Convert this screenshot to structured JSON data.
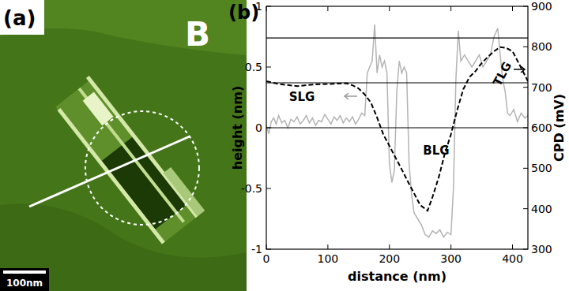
{
  "panel_a": {
    "label": "(a)",
    "region_label": "B",
    "scale_bar": "100nm"
  },
  "chart_data": {
    "type": "line",
    "panel_label": "(b)",
    "x_label": "distance (nm)",
    "y_label": "height (nm)",
    "y2_label": "CPD (mV)",
    "xlim": [
      0,
      425
    ],
    "xticks": [
      0,
      100,
      200,
      300,
      400
    ],
    "ylim": [
      -1,
      1
    ],
    "yticks": [
      -1,
      -0.5,
      0,
      0.5,
      1
    ],
    "y2lim": [
      300,
      900
    ],
    "y2ticks": [
      300,
      400,
      500,
      600,
      700,
      800,
      900
    ],
    "reference_lines": [
      0,
      0.37,
      0.74
    ],
    "annotations": [
      "SLG",
      "BLG",
      "TLG"
    ],
    "series": [
      {
        "axis": "y",
        "color": "#b4b4b4",
        "line_style": "solid",
        "x": [
          0,
          4,
          8,
          12,
          16,
          20,
          25,
          30,
          35,
          40,
          45,
          50,
          55,
          60,
          65,
          70,
          75,
          80,
          85,
          90,
          95,
          100,
          105,
          110,
          115,
          120,
          125,
          130,
          135,
          140,
          145,
          150,
          155,
          160,
          164,
          168,
          172,
          176,
          180,
          184,
          188,
          192,
          196,
          200,
          204,
          208,
          212,
          216,
          220,
          224,
          228,
          232,
          236,
          240,
          246,
          252,
          258,
          264,
          270,
          276,
          282,
          288,
          294,
          300,
          304,
          308,
          312,
          316,
          322,
          328,
          334,
          340,
          346,
          352,
          358,
          364,
          370,
          376,
          380,
          384,
          388,
          392,
          396,
          402,
          408,
          414,
          420,
          425
        ],
        "values": [
          0.02,
          -0.05,
          0.05,
          0.08,
          0.03,
          0.1,
          0.04,
          0.06,
          0.0,
          0.07,
          0.05,
          0.09,
          0.03,
          0.06,
          0.1,
          0.04,
          0.08,
          0.02,
          0.06,
          0.05,
          0.11,
          0.07,
          0.03,
          0.09,
          0.06,
          0.1,
          0.04,
          0.08,
          0.05,
          0.09,
          0.03,
          0.07,
          0.12,
          0.1,
          0.45,
          0.5,
          0.55,
          0.85,
          0.45,
          0.6,
          0.5,
          0.55,
          0.45,
          -0.3,
          -0.45,
          -0.35,
          0.3,
          0.55,
          0.45,
          0.5,
          0.45,
          -0.3,
          -0.55,
          -0.7,
          -0.75,
          -0.8,
          -0.88,
          -0.9,
          -0.85,
          -0.87,
          -0.84,
          -0.9,
          -0.86,
          -0.88,
          -0.5,
          0.4,
          0.8,
          0.55,
          0.6,
          0.55,
          0.5,
          0.55,
          0.6,
          0.5,
          0.55,
          0.6,
          0.75,
          0.82,
          0.6,
          0.4,
          0.3,
          0.12,
          0.1,
          0.15,
          0.05,
          0.12,
          0.08,
          0.1
        ]
      },
      {
        "axis": "y2",
        "color": "#000000",
        "line_style": "dashed",
        "x": [
          0,
          20,
          50,
          80,
          100,
          130,
          140,
          150,
          160,
          170,
          180,
          190,
          200,
          210,
          220,
          230,
          240,
          250,
          262,
          270,
          280,
          290,
          300,
          310,
          320,
          330,
          340,
          350,
          360,
          370,
          380,
          390,
          400,
          410,
          420,
          425
        ],
        "values": [
          715,
          708,
          703,
          707,
          708,
          710,
          705,
          697,
          682,
          662,
          625,
          584,
          555,
          526,
          497,
          467,
          438,
          409,
          395,
          429,
          477,
          536,
          584,
          643,
          695,
          725,
          740,
          760,
          775,
          789,
          799,
          797,
          789,
          760,
          730,
          715
        ]
      }
    ]
  }
}
